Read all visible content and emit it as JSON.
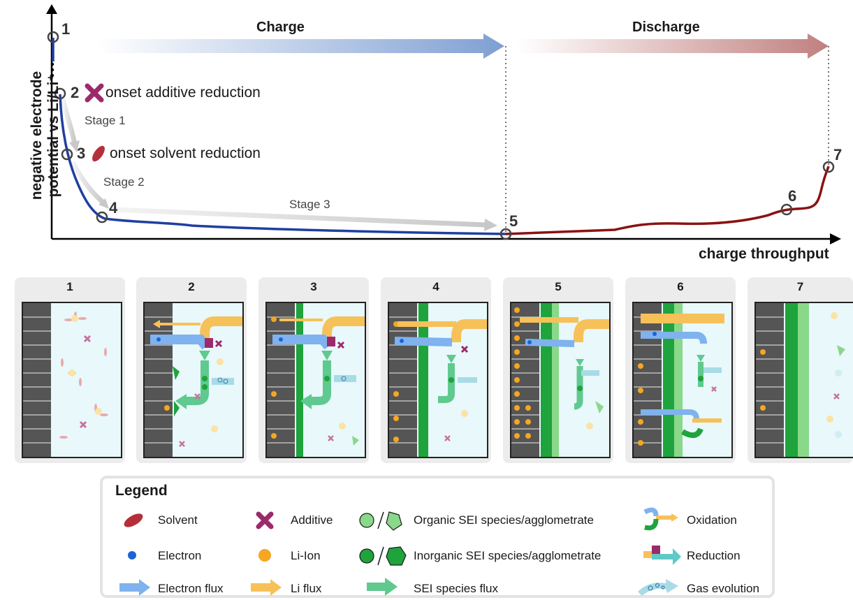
{
  "plot": {
    "y_axis_label_line1": "negative electrode",
    "y_axis_label_line2": "potential vs Li/Li⁺",
    "x_axis_label": "charge throughput",
    "charge_label": "Charge",
    "discharge_label": "Discharge",
    "points": [
      "1",
      "2",
      "3",
      "4",
      "5",
      "6",
      "7"
    ],
    "onset_additive": "onset additive reduction",
    "onset_solvent": "onset solvent reduction",
    "stage1": "Stage 1",
    "stage2": "Stage 2",
    "stage3": "Stage 3",
    "colors": {
      "charge": "#1f3fa0",
      "discharge": "#8b1212",
      "charge_arrow": "#7f9fd3",
      "discharge_arrow": "#c0807f"
    }
  },
  "panels": [
    "1",
    "2",
    "3",
    "4",
    "5",
    "6",
    "7"
  ],
  "legend": {
    "title": "Legend",
    "solvent": "Solvent",
    "additive": "Additive",
    "organic": "Organic SEI species/agglometrate",
    "oxidation": "Oxidation",
    "electron": "Electron",
    "li_ion": "Li-Ion",
    "inorganic": "Inorganic SEI species/agglometrate",
    "reduction": "Reduction",
    "electron_flux": "Electron flux",
    "li_flux": "Li flux",
    "sei_flux": "SEI species flux",
    "gas": "Gas evolution",
    "colors": {
      "solvent": "#b52f3a",
      "additive": "#9c2a6b",
      "electron": "#1b63d6",
      "li": "#f5a623",
      "organic": "#8ad88a",
      "inorganic": "#1fa33c",
      "electron_flux": "#7fb2ee",
      "li_flux": "#f7c15a",
      "sei_flux": "#5fc98f",
      "gas": "#a9dbe6"
    }
  }
}
